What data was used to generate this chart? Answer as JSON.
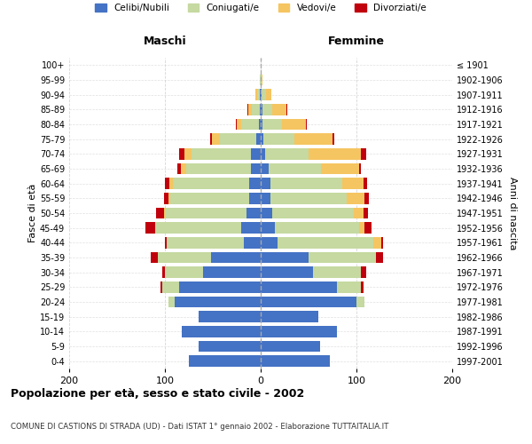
{
  "age_groups": [
    "0-4",
    "5-9",
    "10-14",
    "15-19",
    "20-24",
    "25-29",
    "30-34",
    "35-39",
    "40-44",
    "45-49",
    "50-54",
    "55-59",
    "60-64",
    "65-69",
    "70-74",
    "75-79",
    "80-84",
    "85-89",
    "90-94",
    "95-99",
    "100+"
  ],
  "birth_years": [
    "1997-2001",
    "1992-1996",
    "1987-1991",
    "1982-1986",
    "1977-1981",
    "1972-1976",
    "1967-1971",
    "1962-1966",
    "1957-1961",
    "1952-1956",
    "1947-1951",
    "1942-1946",
    "1937-1941",
    "1932-1936",
    "1927-1931",
    "1922-1926",
    "1917-1921",
    "1912-1916",
    "1907-1911",
    "1902-1906",
    "≤ 1901"
  ],
  "males": {
    "celibi": [
      75,
      65,
      82,
      65,
      90,
      85,
      60,
      52,
      18,
      20,
      15,
      12,
      12,
      10,
      10,
      5,
      2,
      1,
      1,
      0,
      0
    ],
    "coniugati": [
      0,
      0,
      0,
      0,
      6,
      18,
      40,
      55,
      80,
      90,
      85,
      82,
      80,
      68,
      62,
      38,
      18,
      8,
      3,
      1,
      0
    ],
    "vedovi": [
      0,
      0,
      0,
      0,
      0,
      0,
      0,
      0,
      0,
      0,
      1,
      2,
      3,
      5,
      8,
      8,
      5,
      4,
      2,
      0,
      0
    ],
    "divorziati": [
      0,
      0,
      0,
      0,
      0,
      2,
      3,
      8,
      2,
      10,
      8,
      5,
      5,
      4,
      5,
      2,
      1,
      1,
      0,
      0,
      0
    ]
  },
  "females": {
    "nubili": [
      72,
      62,
      80,
      60,
      100,
      80,
      55,
      50,
      18,
      15,
      12,
      10,
      10,
      8,
      5,
      3,
      2,
      2,
      1,
      0,
      0
    ],
    "coniugate": [
      0,
      0,
      0,
      0,
      8,
      25,
      50,
      70,
      100,
      88,
      85,
      80,
      75,
      55,
      45,
      32,
      20,
      10,
      5,
      1,
      0
    ],
    "vedove": [
      0,
      0,
      0,
      0,
      0,
      0,
      0,
      0,
      8,
      5,
      10,
      18,
      22,
      40,
      55,
      40,
      25,
      15,
      5,
      1,
      0
    ],
    "divorziate": [
      0,
      0,
      0,
      0,
      0,
      2,
      5,
      8,
      2,
      8,
      5,
      5,
      4,
      2,
      5,
      2,
      1,
      1,
      0,
      0,
      0
    ]
  },
  "colors": {
    "celibi_nubili": "#4472C4",
    "coniugati": "#C5D9A0",
    "vedovi": "#F5C561",
    "divorziati": "#C0000C"
  },
  "title_main": "Popolazione per età, sesso e stato civile - 2002",
  "title_sub": "COMUNE DI CASTIONS DI STRADA (UD) - Dati ISTAT 1° gennaio 2002 - Elaborazione TUTTAITALIA.IT",
  "xlabel_left": "Maschi",
  "xlabel_right": "Femmine",
  "ylabel_left": "Fasce di età",
  "ylabel_right": "Anni di nascita",
  "xlim": 200,
  "legend_labels": [
    "Celibi/Nubili",
    "Coniugati/e",
    "Vedovi/e",
    "Divorziati/e"
  ],
  "background_color": "#ffffff",
  "grid_color": "#cccccc"
}
